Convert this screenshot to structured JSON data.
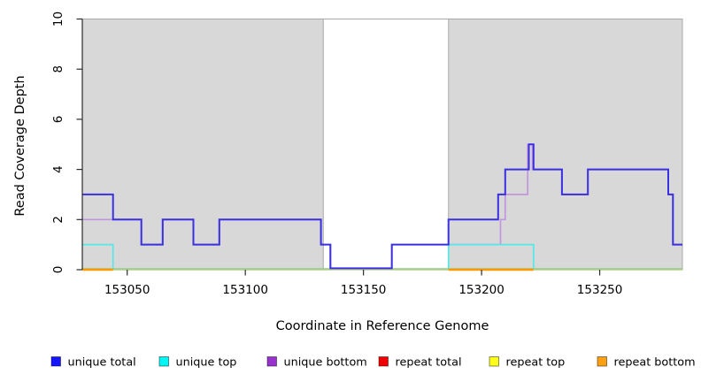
{
  "chart_data": {
    "type": "line",
    "subtype": "step-coverage-plot",
    "xlabel": "Coordinate in Reference Genome",
    "ylabel": "Read Coverage Depth",
    "xlim": [
      153031,
      153285
    ],
    "ylim": [
      0,
      10
    ],
    "x_ticks": [
      153050,
      153100,
      153150,
      153200,
      153250
    ],
    "y_ticks": [
      0,
      2,
      4,
      6,
      8,
      10
    ],
    "grid": false,
    "legend_position": "bottom",
    "panel": {
      "background": "#ffffff",
      "shaded_fill": "#d8d8d8",
      "shaded_border": "#a9a9a9",
      "axis_color": "#2b2b2b"
    },
    "shaded_regions": [
      {
        "x0": 153031,
        "x1": 153133
      },
      {
        "x0": 153186,
        "x1": 153285
      }
    ],
    "series": [
      {
        "name": "repeat total",
        "color": "#e00000",
        "width": 1.4,
        "segments": [
          [
            153031,
            153285,
            0
          ]
        ]
      },
      {
        "name": "unique bottom",
        "color": "#c295de",
        "width": 1.7,
        "segments": [
          [
            153031,
            153056,
            2
          ],
          [
            153056,
            153065,
            1
          ],
          [
            153065,
            153078,
            2
          ],
          [
            153078,
            153089,
            1
          ],
          [
            153089,
            153132,
            2
          ],
          [
            153132,
            153136,
            1
          ],
          [
            153136,
            153162,
            0
          ],
          [
            153162,
            153208,
            1
          ],
          [
            153208,
            153210,
            2
          ],
          [
            153210,
            153219.5,
            3
          ],
          [
            153219.5,
            153221.5,
            5
          ],
          [
            153221.5,
            153234,
            4
          ],
          [
            153234,
            153245,
            3
          ],
          [
            153245,
            153279,
            4
          ],
          [
            153279,
            153281,
            3
          ],
          [
            153281,
            153285,
            1
          ]
        ]
      },
      {
        "name": "unique top",
        "color": "#55e8e8",
        "width": 1.7,
        "segments": [
          [
            153031,
            153044,
            1
          ],
          [
            153044,
            153186,
            0
          ],
          [
            153186,
            153222,
            1
          ],
          [
            153222,
            153285,
            0
          ]
        ]
      },
      {
        "name": "repeat top",
        "color": "#e8dc96",
        "width": 1.5,
        "segments": [
          [
            153031,
            153285,
            0
          ]
        ]
      },
      {
        "name": "repeat bottom",
        "color": "#ff9b00",
        "width": 2.4,
        "segments": [
          [
            153031,
            153044,
            0
          ],
          [
            153186,
            153222,
            0
          ]
        ]
      },
      {
        "name": "unique total",
        "color": "#3a30e0",
        "width": 2,
        "segments": [
          [
            153031,
            153044,
            3
          ],
          [
            153044,
            153056,
            2
          ],
          [
            153056,
            153065,
            1
          ],
          [
            153065,
            153078,
            2
          ],
          [
            153078,
            153089,
            1
          ],
          [
            153089,
            153132,
            2
          ],
          [
            153132,
            153136,
            1
          ],
          [
            153136,
            153162,
            0
          ],
          [
            153162,
            153186,
            1
          ],
          [
            153186,
            153207,
            2
          ],
          [
            153207,
            153210,
            3
          ],
          [
            153210,
            153220,
            4
          ],
          [
            153220,
            153222,
            5
          ],
          [
            153222,
            153234,
            4
          ],
          [
            153234,
            153245,
            3
          ],
          [
            153245,
            153279,
            4
          ],
          [
            153279,
            153281,
            3
          ],
          [
            153281,
            153285,
            1
          ]
        ]
      }
    ],
    "overlap_artifact": {
      "note": "pale green blend where unique-top and repeat-top overlap on the zero baseline",
      "color": "#8fca8f",
      "x0": 153031,
      "x1": 153285,
      "value": 0,
      "after_series": "repeat top"
    },
    "legend": [
      {
        "label": "unique total",
        "color": "#1414ff"
      },
      {
        "label": "unique top",
        "color": "#00f5f5"
      },
      {
        "label": "unique bottom",
        "color": "#9932cc"
      },
      {
        "label": "repeat total",
        "color": "#f00000"
      },
      {
        "label": "repeat top",
        "color": "#ffff1a"
      },
      {
        "label": "repeat bottom",
        "color": "#ffa010"
      }
    ]
  }
}
